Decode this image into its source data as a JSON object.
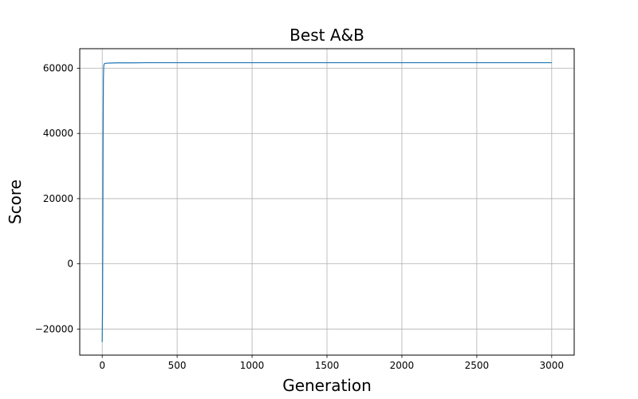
{
  "chart_data": {
    "type": "line",
    "title": "Best A&B",
    "xlabel": "Generation",
    "ylabel": "Score",
    "xlim": [
      -150,
      3150
    ],
    "ylim": [
      -28000,
      66000
    ],
    "x_ticks": [
      0,
      500,
      1000,
      1500,
      2000,
      2500,
      3000
    ],
    "x_tick_labels": [
      "0",
      "500",
      "1000",
      "1500",
      "2000",
      "2500",
      "3000"
    ],
    "y_ticks": [
      -20000,
      0,
      20000,
      40000,
      60000
    ],
    "y_tick_labels": [
      "−20000",
      "0",
      "20000",
      "40000",
      "60000"
    ],
    "grid": true,
    "legend": "none",
    "line_color": "#1f77b4",
    "series": [
      {
        "x": [
          0,
          2,
          4,
          6,
          8,
          10,
          12,
          15,
          20,
          30,
          50,
          100,
          200,
          300,
          500,
          700,
          1000,
          1200,
          1500,
          1800,
          2000,
          2200,
          2500,
          2800,
          3000
        ],
        "values": [
          -24000,
          -15000,
          8000,
          40000,
          57000,
          60500,
          61200,
          61400,
          61500,
          61550,
          61600,
          61650,
          61650,
          61700,
          61700,
          61700,
          61700,
          61700,
          61700,
          61700,
          61700,
          61700,
          61700,
          61700,
          61700
        ]
      }
    ]
  }
}
